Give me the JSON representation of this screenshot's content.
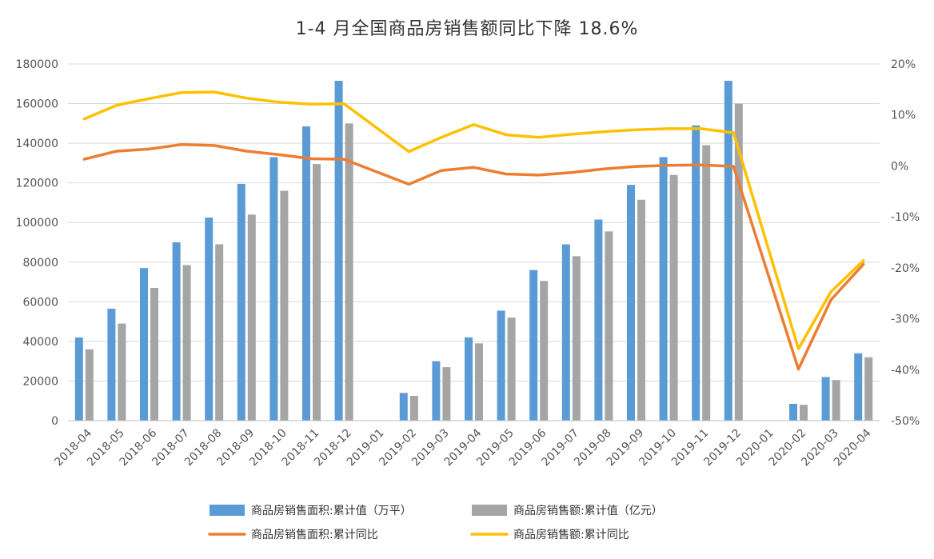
{
  "chart_data": {
    "type": "bar+line",
    "title": "1-4 月全国商品房销售额同比下降 18.6%",
    "categories": [
      "2018-04",
      "2018-05",
      "2018-06",
      "2018-07",
      "2018-08",
      "2018-09",
      "2018-10",
      "2018-11",
      "2018-12",
      "2019-01",
      "2019-02",
      "2019-03",
      "2019-04",
      "2019-05",
      "2019-06",
      "2019-07",
      "2019-08",
      "2019-09",
      "2019-10",
      "2019-11",
      "2019-12",
      "2020-01",
      "2020-02",
      "2020-03",
      "2020-04"
    ],
    "left_axis": {
      "min": 0,
      "max": 180000,
      "ticks": [
        "0",
        "20000",
        "40000",
        "60000",
        "80000",
        "100000",
        "120000",
        "140000",
        "160000",
        "180000"
      ]
    },
    "right_axis": {
      "min": -50,
      "max": 20,
      "ticks": [
        "-50%",
        "-40%",
        "-30%",
        "-20%",
        "-10%",
        "0%",
        "10%",
        "20%"
      ]
    },
    "grid": true,
    "legend_position": "bottom",
    "series": [
      {
        "name": "商品房销售面积:累计值（万平）",
        "type": "bar",
        "axis": "left",
        "color": "#5B9BD5",
        "values": [
          42000,
          56500,
          77000,
          90000,
          102500,
          119500,
          133000,
          148500,
          171500,
          null,
          14000,
          30000,
          42000,
          55500,
          76000,
          89000,
          101500,
          119000,
          133000,
          149000,
          171500,
          null,
          8500,
          22000,
          34000
        ]
      },
      {
        "name": "商品房销售额:累计值（亿元）",
        "type": "bar",
        "axis": "left",
        "color": "#A5A5A5",
        "values": [
          36000,
          49000,
          67000,
          78500,
          89000,
          104000,
          116000,
          129500,
          150000,
          null,
          12500,
          27000,
          39000,
          52000,
          70500,
          83000,
          95500,
          111500,
          124000,
          139000,
          160000,
          null,
          8000,
          20500,
          32000
        ]
      },
      {
        "name": "商品房销售面积:累计同比",
        "type": "line",
        "axis": "right",
        "color": "#ED7D31",
        "values": [
          1.3,
          2.9,
          3.3,
          4.2,
          4.0,
          2.9,
          2.2,
          1.4,
          1.3,
          null,
          -3.6,
          -0.9,
          -0.3,
          -1.6,
          -1.8,
          -1.3,
          -0.6,
          -0.1,
          0.1,
          0.2,
          -0.1,
          null,
          -39.9,
          -26.3,
          -19.3
        ]
      },
      {
        "name": "商品房销售额:累计同比",
        "type": "line",
        "axis": "right",
        "color": "#FFC000",
        "values": [
          9.2,
          11.9,
          13.2,
          14.4,
          14.5,
          13.3,
          12.5,
          12.1,
          12.2,
          null,
          2.8,
          5.6,
          8.1,
          6.1,
          5.6,
          6.2,
          6.7,
          7.1,
          7.3,
          7.3,
          6.5,
          null,
          -35.9,
          -24.7,
          -18.6
        ]
      }
    ]
  }
}
